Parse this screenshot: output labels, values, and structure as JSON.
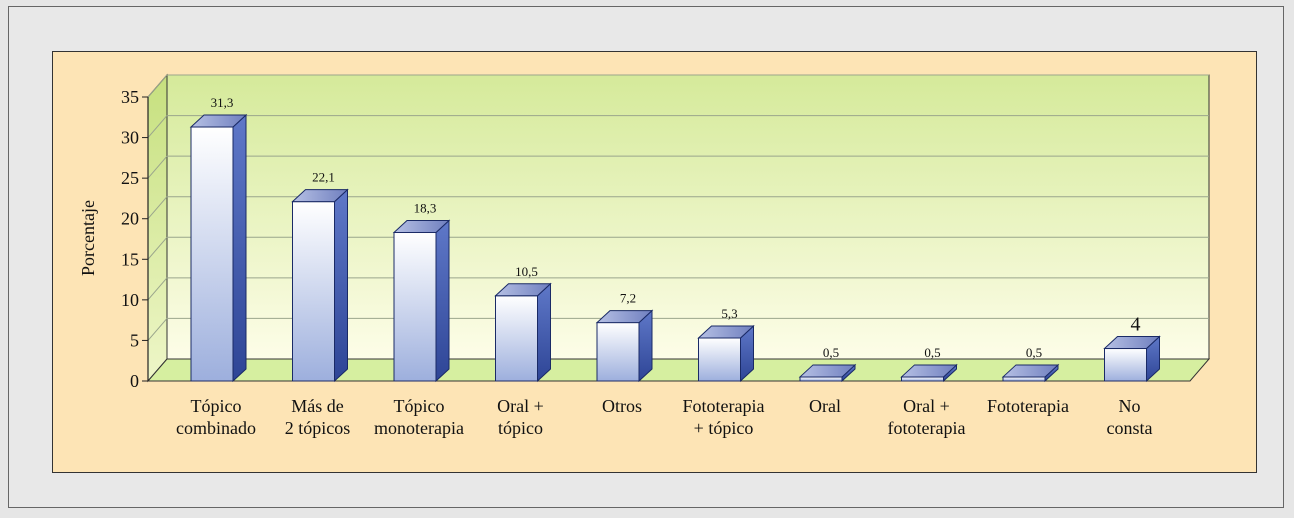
{
  "chart_data": {
    "type": "bar",
    "title": "",
    "xlabel": "",
    "ylabel": "Porcentaje",
    "ylim": [
      0,
      35
    ],
    "yticks": [
      "0",
      "5",
      "10",
      "15",
      "20",
      "25",
      "30",
      "35"
    ],
    "grid": true,
    "categories": [
      [
        "Tópico",
        "combinado"
      ],
      [
        "Más de",
        "2 tópicos"
      ],
      [
        "Tópico",
        "monoterapia"
      ],
      [
        "Oral +",
        "tópico"
      ],
      [
        "Otros"
      ],
      [
        "Fototerapia",
        "+ tópico"
      ],
      [
        "Oral"
      ],
      [
        "Oral +",
        "fototerapia"
      ],
      [
        "Fototerapia"
      ],
      [
        "No",
        "consta"
      ]
    ],
    "values": [
      31.3,
      22.1,
      18.3,
      10.5,
      7.2,
      5.3,
      0.5,
      0.5,
      0.5,
      4
    ],
    "value_labels": [
      "31,3",
      "22,1",
      "18,3",
      "10,5",
      "7,2",
      "5,3",
      "0,5",
      "0,5",
      "0,5",
      "4"
    ],
    "colors": {
      "panel_background": "#fde4b5",
      "plot_wall_top": "#d7ec9e",
      "plot_wall_bottom": "#fdfde6",
      "floor": "#d8f0a0",
      "bar_front_light": "#ffffff",
      "bar_front_dark": "#9fb0de",
      "bar_side": "#3d57ae",
      "bar_top": "#8492c8"
    }
  }
}
